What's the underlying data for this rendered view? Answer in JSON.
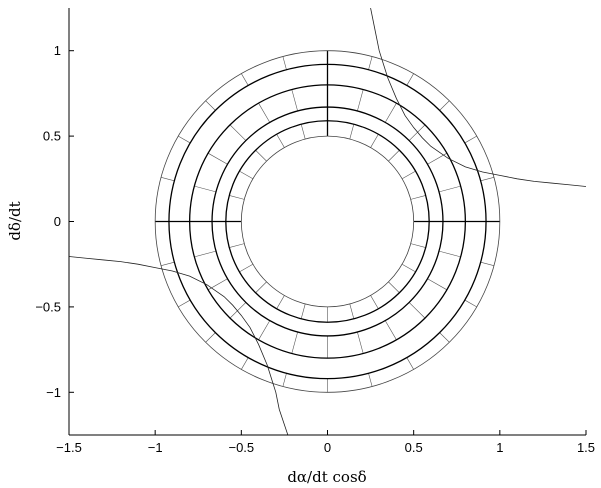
{
  "chart_data": {
    "type": "line",
    "title": "",
    "xlabel": "dα/dt cosδ",
    "ylabel": "dδ/dt",
    "xlim": [
      -1.5,
      1.5
    ],
    "ylim": [
      -1.25,
      1.25
    ],
    "xticks": [
      -1.5,
      -1,
      -0.5,
      0,
      0.5,
      1,
      1.5
    ],
    "yticks": [
      -1,
      -0.5,
      0,
      0.5,
      1
    ],
    "xtick_labels": [
      "−1.5",
      "−1",
      "−0.5",
      "0",
      "0.5",
      "1",
      "1.5"
    ],
    "ytick_labels": [
      "−1",
      "−0.5",
      "0",
      "0.5",
      "1"
    ],
    "grid": false,
    "annulus": {
      "inner_radius": 0.5,
      "outer_radius": 1.0,
      "thin_circle_radii": [
        0.5,
        1.0
      ],
      "thick_circle_radii": [
        0.59,
        0.67,
        0.8,
        0.92
      ],
      "thin_spoke_count": 24,
      "thick_spoke_angles_deg": [
        0,
        90,
        180
      ],
      "thin_ring_gaps": [
        [
          0.5,
          0.59
        ],
        [
          0.67,
          0.8
        ],
        [
          0.92,
          1.0
        ]
      ]
    },
    "series": [
      {
        "x": [
          0.25,
          0.28,
          0.3,
          0.35,
          0.4,
          0.45,
          0.5,
          0.55,
          0.6,
          0.7,
          0.8,
          0.9,
          1.0,
          1.1,
          1.2,
          1.3,
          1.4,
          1.5
        ],
        "y": [
          1.25,
          1.1,
          1.0,
          0.84,
          0.72,
          0.62,
          0.55,
          0.49,
          0.44,
          0.37,
          0.32,
          0.29,
          0.27,
          0.25,
          0.235,
          0.225,
          0.215,
          0.205
        ]
      },
      {
        "x": [
          -1.5,
          -1.4,
          -1.3,
          -1.2,
          -1.1,
          -1.0,
          -0.9,
          -0.8,
          -0.7,
          -0.6,
          -0.55,
          -0.5,
          -0.45,
          -0.4,
          -0.35,
          -0.3,
          -0.28,
          -0.23
        ],
        "y": [
          -0.205,
          -0.215,
          -0.225,
          -0.235,
          -0.25,
          -0.27,
          -0.29,
          -0.32,
          -0.37,
          -0.44,
          -0.49,
          -0.55,
          -0.62,
          -0.72,
          -0.84,
          -1.0,
          -1.1,
          -1.25
        ]
      }
    ]
  }
}
